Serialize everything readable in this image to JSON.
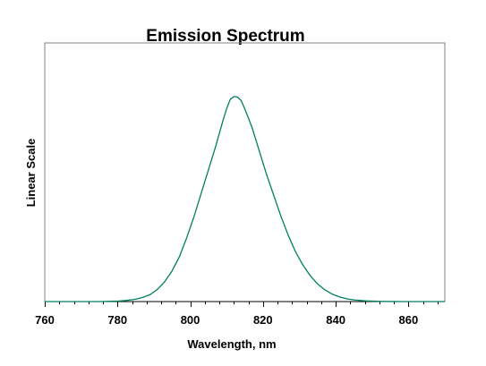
{
  "chart_data": {
    "type": "line",
    "title": "Emission Spectrum",
    "xlabel": "Wavelength, nm",
    "ylabel": "Linear Scale",
    "xlim": [
      760,
      870
    ],
    "ylim": [
      0,
      1.1
    ],
    "x_ticks": [
      760,
      780,
      800,
      820,
      840,
      860
    ],
    "x_minor_step": 4,
    "y_ticks_shown": false,
    "grid": false,
    "legend": "none",
    "line_color": "#008060",
    "series": [
      {
        "x": [
          760,
          775,
          780,
          782,
          785,
          787,
          789,
          791,
          793,
          795,
          797,
          799,
          801,
          803,
          805,
          807,
          809,
          810,
          811,
          812,
          813,
          814,
          815,
          817,
          819,
          821,
          823,
          825,
          827,
          829,
          831,
          833,
          835,
          837,
          839,
          841,
          843,
          845,
          848,
          852,
          856,
          858,
          870
        ],
        "y": [
          0,
          0,
          0.002,
          0.004,
          0.01,
          0.018,
          0.03,
          0.052,
          0.085,
          0.13,
          0.19,
          0.27,
          0.36,
          0.46,
          0.56,
          0.66,
          0.77,
          0.82,
          0.86,
          0.872,
          0.87,
          0.855,
          0.82,
          0.74,
          0.64,
          0.54,
          0.45,
          0.36,
          0.28,
          0.21,
          0.155,
          0.11,
          0.075,
          0.05,
          0.032,
          0.02,
          0.012,
          0.007,
          0.003,
          0.001,
          0.0002,
          0,
          0
        ]
      }
    ]
  }
}
